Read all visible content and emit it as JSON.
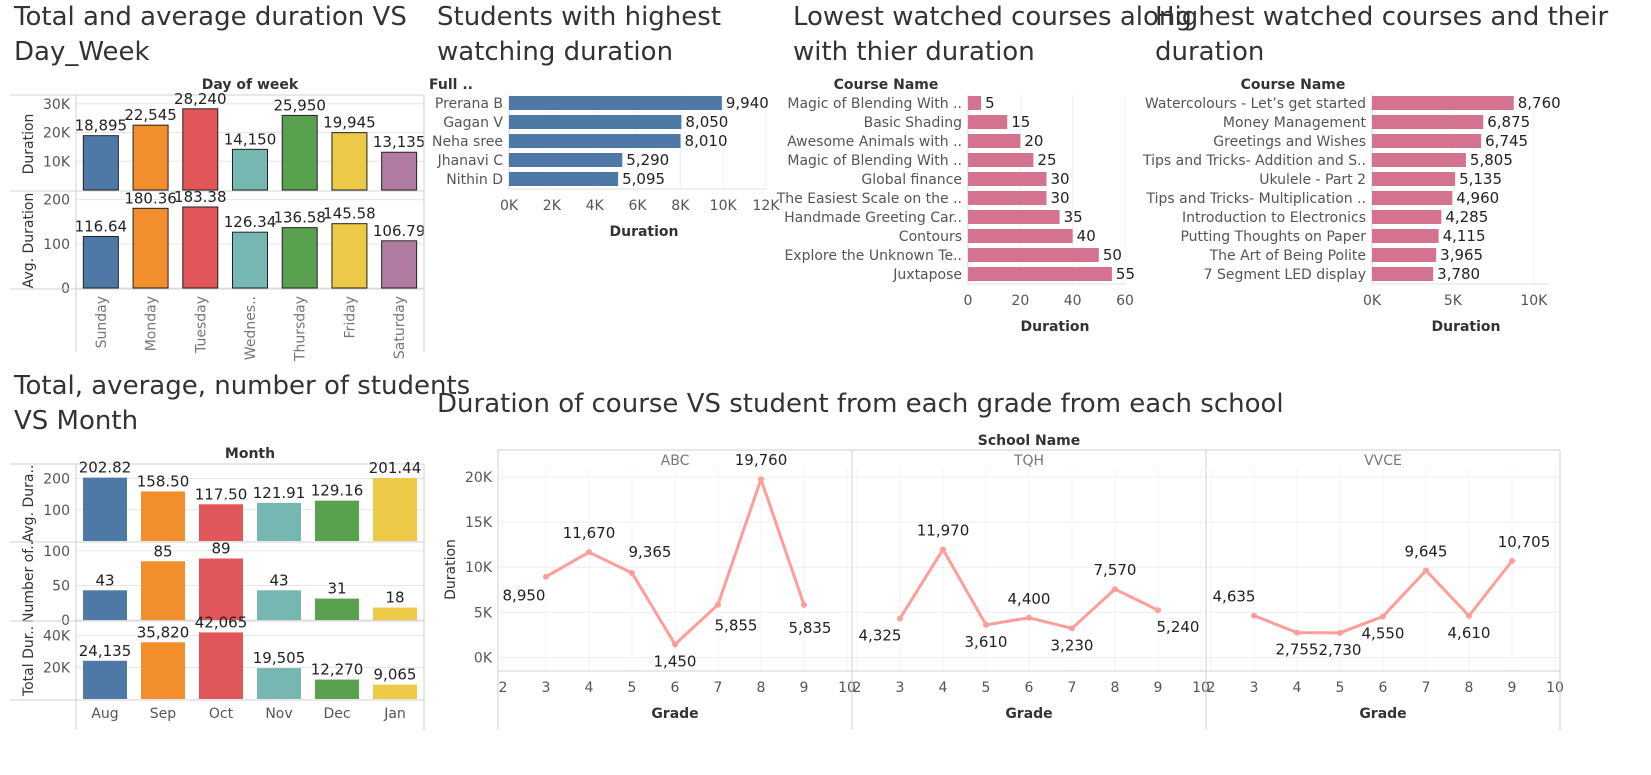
{
  "titles": {
    "day_week": [
      "Total and average duration VS",
      "Day_Week"
    ],
    "students": [
      "Students with highest",
      "watching duration"
    ],
    "lowest": [
      "Lowest watched courses along",
      "with thier duration"
    ],
    "highest": [
      "Highest watched courses and their",
      "duration"
    ],
    "month": [
      "Total, average, number of students",
      "VS Month"
    ],
    "grade": [
      "Duration of course VS student from each grade from each school"
    ]
  },
  "chart_data": [
    {
      "id": "day_week",
      "type": "bar",
      "header": "Day of week",
      "categories": [
        "Sunday",
        "Monday",
        "Tuesday",
        "Wednes..",
        "Thursday",
        "Friday",
        "Saturday"
      ],
      "colors": [
        "#4e79a7",
        "#f28e2b",
        "#e15759",
        "#76b7b2",
        "#59a14f",
        "#edc948",
        "#b07aa1"
      ],
      "series": [
        {
          "name": "Duration",
          "values": [
            18895,
            22545,
            28240,
            14150,
            25950,
            19945,
            13135
          ],
          "labels": [
            "18,895",
            "22,545",
            "28,240",
            "14,150",
            "25,950",
            "19,945",
            "13,135"
          ],
          "ylim": [
            0,
            32000
          ],
          "ticks": [
            10000,
            20000,
            30000
          ],
          "tick_labels": [
            "10K",
            "20K",
            "30K"
          ]
        },
        {
          "name": "Avg. Duration",
          "values": [
            116.64,
            180.36,
            183.38,
            126.34,
            136.58,
            145.58,
            106.79
          ],
          "labels": [
            "116.64",
            "180.36",
            "183.38",
            "126.34",
            "136.58",
            "145.58",
            "106.79"
          ],
          "ylim": [
            0,
            215
          ],
          "ticks": [
            0,
            100,
            200
          ],
          "tick_labels": [
            "0",
            "100",
            "200"
          ]
        }
      ]
    },
    {
      "id": "students",
      "type": "bar",
      "orientation": "horizontal",
      "header": "Full ..",
      "categories": [
        "Prerana B",
        "Gagan V",
        "Neha sree",
        "Jhanavi C",
        "Nithin D"
      ],
      "values": [
        9940,
        8050,
        8010,
        5290,
        5095
      ],
      "labels": [
        "9,940",
        "8,050",
        "8,010",
        "5,290",
        "5,095"
      ],
      "xlabel": "Duration",
      "xlim": [
        0,
        12000
      ],
      "ticks": [
        0,
        2000,
        4000,
        6000,
        8000,
        10000,
        12000
      ],
      "tick_labels": [
        "0K",
        "2K",
        "4K",
        "6K",
        "8K",
        "10K",
        "12K"
      ],
      "color": "#4e79a7"
    },
    {
      "id": "lowest",
      "type": "bar",
      "orientation": "horizontal",
      "header": "Course Name",
      "categories": [
        "Magic of Blending With ..",
        "Basic Shading",
        "Awesome Animals with ..",
        "Magic of Blending With ..",
        "Global finance",
        "The Easiest Scale on the ..",
        "Handmade Greeting Car..",
        "Contours",
        "Explore the Unknown Te..",
        "Juxtapose"
      ],
      "values": [
        5,
        15,
        20,
        25,
        30,
        30,
        35,
        40,
        50,
        55
      ],
      "labels": [
        "5",
        "15",
        "20",
        "25",
        "30",
        "30",
        "35",
        "40",
        "50",
        "55"
      ],
      "xlabel": "Duration",
      "xlim": [
        0,
        60
      ],
      "ticks": [
        0,
        20,
        40,
        60
      ],
      "tick_labels": [
        "0",
        "20",
        "40",
        "60"
      ],
      "color": "#d4738f"
    },
    {
      "id": "highest",
      "type": "bar",
      "orientation": "horizontal",
      "header": "Course Name",
      "categories": [
        "Watercolours - Let’s get started",
        "Money Management",
        "Greetings and Wishes",
        "Tips and Tricks- Addition and S..",
        "Ukulele - Part 2",
        "Tips and Tricks- Multiplication ..",
        "Introduction to Electronics",
        "Putting Thoughts on Paper",
        "The Art of Being Polite",
        "7 Segment LED display"
      ],
      "values": [
        8760,
        6875,
        6745,
        5805,
        5135,
        4960,
        4285,
        4115,
        3965,
        3780
      ],
      "labels": [
        "8,760",
        "6,875",
        "6,745",
        "5,805",
        "5,135",
        "4,960",
        "4,285",
        "4,115",
        "3,965",
        "3,780"
      ],
      "xlabel": "Duration",
      "xlim": [
        0,
        11000
      ],
      "ticks": [
        0,
        5000,
        10000
      ],
      "tick_labels": [
        "0K",
        "5K",
        "10K"
      ],
      "color": "#d4738f"
    },
    {
      "id": "month",
      "type": "bar",
      "header": "Month",
      "categories": [
        "Aug",
        "Sep",
        "Oct",
        "Nov",
        "Dec",
        "Jan"
      ],
      "colors": [
        "#4e79a7",
        "#f28e2b",
        "#e15759",
        "#76b7b2",
        "#59a14f",
        "#edc948"
      ],
      "series": [
        {
          "name": "Avg. Dura..",
          "values": [
            202.82,
            158.5,
            117.5,
            121.91,
            129.16,
            201.44
          ],
          "labels": [
            "202.82",
            "158.50",
            "117.50",
            "121.91",
            "129.16",
            "201.44"
          ],
          "ylim": [
            0,
            240
          ],
          "ticks": [
            100,
            200
          ],
          "tick_labels": [
            "100",
            "200"
          ]
        },
        {
          "name": "Number of..",
          "values": [
            43,
            85,
            89,
            43,
            31,
            18
          ],
          "labels": [
            "43",
            "85",
            "89",
            "43",
            "31",
            "18"
          ],
          "ylim": [
            0,
            110
          ],
          "ticks": [
            0,
            50,
            100
          ],
          "tick_labels": [
            "0",
            "50",
            "100"
          ]
        },
        {
          "name": "Total Dur..",
          "values": [
            24135,
            35820,
            42065,
            19505,
            12270,
            9065
          ],
          "labels": [
            "24,135",
            "35,820",
            "42,065",
            "19,505",
            "12,270",
            "9,065"
          ],
          "ylim": [
            0,
            48000
          ],
          "ticks": [
            20000,
            40000
          ],
          "tick_labels": [
            "20K",
            "40K"
          ]
        }
      ]
    },
    {
      "id": "grade",
      "type": "line",
      "header": "School Name",
      "xlabel": "Grade",
      "ylabel": "Duration",
      "xlim": [
        2,
        10
      ],
      "xticks": [
        2,
        3,
        4,
        5,
        6,
        7,
        8,
        9,
        10
      ],
      "ylim": [
        -1500,
        21000
      ],
      "yticks": [
        0,
        5000,
        10000,
        15000,
        20000
      ],
      "ytick_labels": [
        "0K",
        "5K",
        "10K",
        "15K",
        "20K"
      ],
      "color": "#ff9d9a",
      "panels": [
        {
          "name": "ABC",
          "x": [
            3,
            4,
            5,
            6,
            7,
            8,
            9
          ],
          "values": [
            8950,
            11670,
            9365,
            1450,
            5855,
            19760,
            5835
          ],
          "labels": [
            "8,950",
            "11,670",
            "9,365",
            "1,450",
            "5,855",
            "19,760",
            "5,835"
          ]
        },
        {
          "name": "TQH",
          "x": [
            3,
            4,
            5,
            6,
            7,
            8,
            9
          ],
          "values": [
            4325,
            11970,
            3610,
            4400,
            3230,
            7570,
            5240
          ],
          "labels": [
            "4,325",
            "11,970",
            "3,610",
            "4,400",
            "3,230",
            "7,570",
            "5,240"
          ]
        },
        {
          "name": "VVCE",
          "x": [
            3,
            4,
            5,
            6,
            7,
            8,
            9
          ],
          "values": [
            4635,
            2755,
            2730,
            4550,
            9645,
            4610,
            10705
          ],
          "labels": [
            "4,635",
            "2,755",
            "2,730",
            "4,550",
            "9,645",
            "4,610",
            "10,705"
          ]
        }
      ]
    }
  ]
}
